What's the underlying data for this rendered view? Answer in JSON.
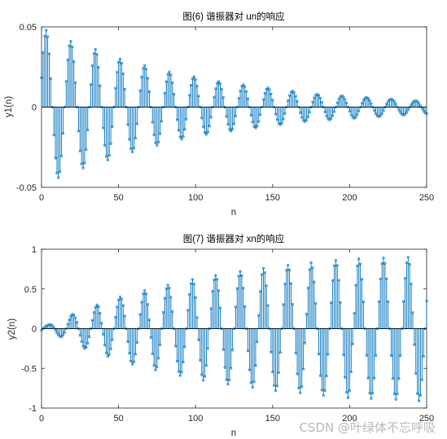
{
  "chart_data": [
    {
      "type": "stem",
      "title": "图(6) 谐振器对 un的响应",
      "xlabel": "n",
      "ylabel": "y1(n)",
      "xlim": [
        0,
        250
      ],
      "ylim": [
        -0.05,
        0.05
      ],
      "xticks": [
        0,
        50,
        100,
        150,
        200,
        250
      ],
      "yticks": [
        -0.05,
        0,
        0.05
      ],
      "ytick_labels": [
        "-0.05",
        "0",
        "0.05"
      ],
      "grid": false,
      "color": "#0072BD",
      "series": [
        {
          "x_start": 0,
          "x_end": 250,
          "envelope_peaks": [
            [
              3,
              0.048
            ],
            [
              19,
              0.041
            ],
            [
              35,
              0.036
            ],
            [
              51,
              0.03
            ],
            [
              67,
              0.026
            ],
            [
              83,
              0.022
            ],
            [
              99,
              0.019
            ],
            [
              115,
              0.016
            ],
            [
              131,
              0.014
            ],
            [
              147,
              0.012
            ],
            [
              163,
              0.01
            ],
            [
              179,
              0.008
            ],
            [
              195,
              0.007
            ],
            [
              211,
              0.006
            ],
            [
              227,
              0.005
            ],
            [
              243,
              0.004
            ]
          ],
          "envelope_troughs": [
            [
              11,
              -0.044
            ],
            [
              27,
              -0.038
            ],
            [
              43,
              -0.033
            ],
            [
              59,
              -0.028
            ],
            [
              75,
              -0.024
            ],
            [
              91,
              -0.02
            ],
            [
              107,
              -0.017
            ],
            [
              123,
              -0.015
            ],
            [
              139,
              -0.013
            ],
            [
              155,
              -0.011
            ],
            [
              171,
              -0.009
            ],
            [
              187,
              -0.008
            ],
            [
              203,
              -0.007
            ],
            [
              219,
              -0.006
            ],
            [
              235,
              -0.005
            ],
            [
              250,
              -0.004
            ]
          ]
        }
      ]
    },
    {
      "type": "stem",
      "title": "图(7) 谐振器对 xn的响应",
      "xlabel": "n",
      "ylabel": "y2(n)",
      "xlim": [
        0,
        250
      ],
      "ylim": [
        -1,
        1
      ],
      "xticks": [
        0,
        50,
        100,
        150,
        200,
        250
      ],
      "yticks": [
        -1,
        -0.5,
        0,
        0.5,
        1
      ],
      "ytick_labels": [
        "-1",
        "-0.5",
        "0",
        "0.5",
        "1"
      ],
      "grid": false,
      "color": "#0072BD",
      "series": [
        {
          "x_start": 0,
          "x_end": 250,
          "envelope_peaks": [
            [
              5,
              0.05
            ],
            [
              20,
              0.18
            ],
            [
              36,
              0.3
            ],
            [
              51,
              0.4
            ],
            [
              67,
              0.48
            ],
            [
              82,
              0.55
            ],
            [
              98,
              0.62
            ],
            [
              113,
              0.67
            ],
            [
              129,
              0.72
            ],
            [
              144,
              0.76
            ],
            [
              160,
              0.8
            ],
            [
              175,
              0.83
            ],
            [
              191,
              0.86
            ],
            [
              206,
              0.88
            ],
            [
              222,
              0.89
            ],
            [
              238,
              0.9
            ]
          ],
          "envelope_troughs": [
            [
              12,
              -0.1
            ],
            [
              28,
              -0.25
            ],
            [
              43,
              -0.35
            ],
            [
              59,
              -0.45
            ],
            [
              74,
              -0.52
            ],
            [
              90,
              -0.59
            ],
            [
              105,
              -0.65
            ],
            [
              121,
              -0.7
            ],
            [
              137,
              -0.74
            ],
            [
              152,
              -0.78
            ],
            [
              168,
              -0.81
            ],
            [
              183,
              -0.84
            ],
            [
              199,
              -0.87
            ],
            [
              214,
              -0.88
            ],
            [
              230,
              -0.89
            ],
            [
              245,
              -0.91
            ]
          ]
        }
      ]
    }
  ],
  "watermark": "CSDN @叶绿体不忘呼吸"
}
